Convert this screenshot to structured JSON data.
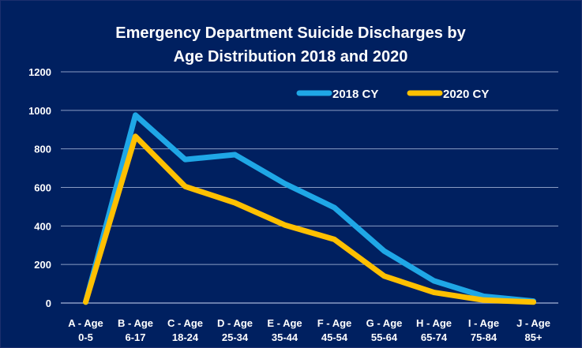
{
  "chart_data": {
    "type": "line",
    "title": [
      "Emergency Department Suicide Discharges by",
      "Age Distribution  2018 and 2020"
    ],
    "xlabel": "",
    "ylabel": "",
    "categories": [
      [
        "A - Age",
        "0-5"
      ],
      [
        "B - Age",
        "6-17"
      ],
      [
        "C - Age",
        "18-24"
      ],
      [
        "D - Age",
        "25-34"
      ],
      [
        "E - Age",
        "35-44"
      ],
      [
        "F - Age",
        "45-54"
      ],
      [
        "G - Age",
        "55-64"
      ],
      [
        "H - Age",
        "65-74"
      ],
      [
        "I - Age",
        "75-84"
      ],
      [
        "J - Age",
        "85+"
      ]
    ],
    "ylim": [
      0,
      1200
    ],
    "yticks": [
      0,
      200,
      400,
      600,
      800,
      1000,
      1200
    ],
    "grid": true,
    "legend_position": "top-right",
    "series": [
      {
        "name": "2018 CY",
        "color": "#1fa7e6",
        "values": [
          5,
          975,
          745,
          770,
          620,
          495,
          270,
          115,
          35,
          10
        ]
      },
      {
        "name": "2020 CY",
        "color": "#ffc000",
        "values": [
          5,
          865,
          605,
          520,
          405,
          330,
          140,
          55,
          15,
          5
        ]
      }
    ],
    "colors": {
      "background": "#002060",
      "grid": "#8a9cc4",
      "text": "#ffffff"
    }
  }
}
